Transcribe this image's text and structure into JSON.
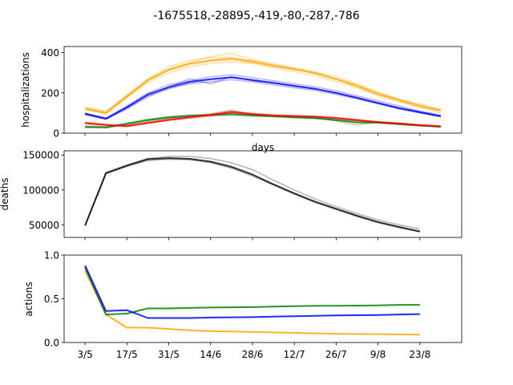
{
  "figure_title": "-1675518,-28895,-419,-80,-287,-786",
  "x_tick_labels": [
    "3/5",
    "17/5",
    "31/5",
    "14/6",
    "28/6",
    "12/7",
    "26/7",
    "9/8",
    "23/8"
  ],
  "colors": {
    "orange": "#ffa500",
    "blue": "#0000ff",
    "green": "#008000",
    "red": "#ff0000",
    "black": "#000000"
  },
  "chart_data": [
    {
      "type": "line",
      "ylabel": "hospitalizations",
      "xlabel": "days",
      "ylim": [
        0,
        430
      ],
      "yticks": [
        0,
        200,
        400
      ],
      "x_range": [
        -1,
        18
      ],
      "series": [
        {
          "color": "#ffa500",
          "opacity": 0.35,
          "values": [
            120,
            100,
            180,
            260,
            310,
            340,
            355,
            365,
            350,
            330,
            315,
            295,
            265,
            230,
            190,
            160,
            130,
            110
          ]
        },
        {
          "color": "#ffa500",
          "opacity": 0.35,
          "values": [
            130,
            110,
            190,
            270,
            330,
            360,
            375,
            375,
            360,
            340,
            320,
            300,
            270,
            240,
            200,
            165,
            140,
            115
          ]
        },
        {
          "color": "#ffa500",
          "opacity": 0.35,
          "values": [
            115,
            95,
            175,
            250,
            300,
            330,
            345,
            355,
            345,
            325,
            305,
            285,
            255,
            225,
            185,
            155,
            125,
            100
          ]
        },
        {
          "color": "#ffa500",
          "opacity": 0.35,
          "values": [
            125,
            105,
            185,
            265,
            320,
            350,
            380,
            395,
            365,
            345,
            325,
            305,
            280,
            245,
            205,
            170,
            145,
            120
          ]
        },
        {
          "color": "#ffa500",
          "opacity": 0.8,
          "values": [
            122,
            100,
            182,
            262,
            315,
            345,
            362,
            370,
            355,
            335,
            318,
            298,
            268,
            235,
            195,
            165,
            135,
            112
          ]
        },
        {
          "color": "#0000ff",
          "opacity": 0.3,
          "values": [
            95,
            70,
            125,
            185,
            225,
            250,
            265,
            275,
            265,
            250,
            235,
            220,
            200,
            175,
            150,
            125,
            105,
            85
          ]
        },
        {
          "color": "#0000ff",
          "opacity": 0.3,
          "values": [
            100,
            75,
            135,
            200,
            240,
            260,
            280,
            290,
            275,
            260,
            245,
            230,
            210,
            185,
            160,
            135,
            110,
            90
          ]
        },
        {
          "color": "#0000ff",
          "opacity": 0.3,
          "values": [
            90,
            68,
            120,
            180,
            220,
            245,
            255,
            265,
            255,
            240,
            225,
            212,
            192,
            170,
            145,
            120,
            100,
            80
          ]
        },
        {
          "color": "#0000ff",
          "opacity": 0.3,
          "values": [
            98,
            72,
            130,
            190,
            230,
            270,
            245,
            280,
            260,
            248,
            232,
            218,
            198,
            172,
            148,
            122,
            102,
            82
          ]
        },
        {
          "color": "#0000ff",
          "opacity": 0.8,
          "values": [
            96,
            72,
            128,
            192,
            228,
            255,
            268,
            278,
            263,
            250,
            235,
            220,
            200,
            176,
            150,
            125,
            104,
            84
          ]
        },
        {
          "color": "#008000",
          "opacity": 0.3,
          "values": [
            30,
            28,
            45,
            65,
            78,
            85,
            90,
            92,
            88,
            84,
            80,
            75,
            68,
            60,
            52,
            45,
            38,
            32
          ]
        },
        {
          "color": "#008000",
          "opacity": 0.3,
          "values": [
            35,
            32,
            50,
            70,
            82,
            90,
            95,
            115,
            90,
            88,
            82,
            78,
            60,
            40,
            55,
            48,
            40,
            34
          ]
        },
        {
          "color": "#008000",
          "opacity": 0.3,
          "values": [
            28,
            26,
            42,
            60,
            75,
            82,
            86,
            88,
            85,
            80,
            76,
            72,
            65,
            58,
            50,
            43,
            36,
            30
          ]
        },
        {
          "color": "#008000",
          "opacity": 0.8,
          "values": [
            31,
            29,
            46,
            65,
            78,
            86,
            90,
            95,
            88,
            84,
            79,
            75,
            64,
            53,
            52,
            45,
            38,
            32
          ]
        },
        {
          "color": "#ff0000",
          "opacity": 0.3,
          "values": [
            50,
            40,
            35,
            50,
            65,
            78,
            90,
            105,
            95,
            88,
            85,
            82,
            75,
            65,
            55,
            48,
            40,
            35
          ]
        },
        {
          "color": "#ff0000",
          "opacity": 0.3,
          "values": [
            55,
            45,
            38,
            55,
            70,
            82,
            95,
            110,
            98,
            90,
            88,
            85,
            78,
            68,
            58,
            50,
            42,
            36
          ]
        },
        {
          "color": "#ff0000",
          "opacity": 0.3,
          "values": [
            45,
            38,
            32,
            48,
            62,
            75,
            85,
            100,
            92,
            85,
            82,
            80,
            72,
            62,
            52,
            45,
            38,
            32
          ]
        },
        {
          "color": "#ff0000",
          "opacity": 0.8,
          "values": [
            50,
            41,
            35,
            51,
            66,
            78,
            90,
            105,
            95,
            88,
            85,
            82,
            75,
            65,
            55,
            48,
            40,
            34
          ]
        }
      ]
    },
    {
      "type": "line",
      "ylabel": "deaths",
      "ylim": [
        32000,
        156000
      ],
      "yticks": [
        50000,
        100000,
        150000
      ],
      "y_tick_labels": [
        "50000",
        "100000",
        "150000"
      ],
      "x_range": [
        -1,
        18
      ],
      "series": [
        {
          "color": "#000000",
          "opacity": 0.3,
          "values": [
            49000,
            125000,
            136000,
            145000,
            148000,
            148000,
            145000,
            139000,
            129000,
            114000,
            100000,
            87000,
            76000,
            66000,
            57000,
            50000,
            44000
          ]
        },
        {
          "color": "#000000",
          "opacity": 0.3,
          "values": [
            49000,
            123000,
            134000,
            142000,
            144000,
            143000,
            139000,
            131000,
            120000,
            107000,
            94000,
            82000,
            72000,
            62000,
            53000,
            46000,
            40000
          ]
        },
        {
          "color": "#000000",
          "opacity": 0.8,
          "values": [
            49000,
            124000,
            134500,
            144000,
            145500,
            144500,
            140500,
            133000,
            122000,
            108000,
            95000,
            83000,
            73000,
            63000,
            54000,
            47000,
            40500
          ]
        }
      ]
    },
    {
      "type": "line",
      "ylabel": "actions",
      "ylim": [
        0.0,
        1.0
      ],
      "yticks": [
        0.0,
        0.5,
        1.0
      ],
      "y_tick_labels": [
        "0.0",
        "0.5",
        "1.0"
      ],
      "x_range": [
        -1,
        18
      ],
      "series": [
        {
          "color": "#ffa500",
          "opacity": 0.85,
          "values": [
            0.82,
            0.32,
            0.17,
            0.17,
            0.155,
            0.14,
            0.13,
            0.12,
            0.115,
            0.11,
            0.105,
            0.1,
            0.095,
            0.093,
            0.09
          ]
        },
        {
          "color": "#008000",
          "opacity": 0.85,
          "values": [
            0.86,
            0.32,
            0.33,
            0.39,
            0.39,
            0.395,
            0.4,
            0.405,
            0.41,
            0.415,
            0.42,
            0.42,
            0.425,
            0.43,
            0.43
          ]
        },
        {
          "color": "#0000ff",
          "opacity": 0.85,
          "values": [
            0.88,
            0.36,
            0.37,
            0.28,
            0.28,
            0.28,
            0.285,
            0.29,
            0.295,
            0.3,
            0.305,
            0.31,
            0.315,
            0.32,
            0.325
          ]
        }
      ],
      "x_values": [
        0,
        1,
        2,
        3,
        4,
        5,
        6,
        8,
        9,
        10,
        11,
        12,
        14,
        15,
        16
      ]
    }
  ]
}
